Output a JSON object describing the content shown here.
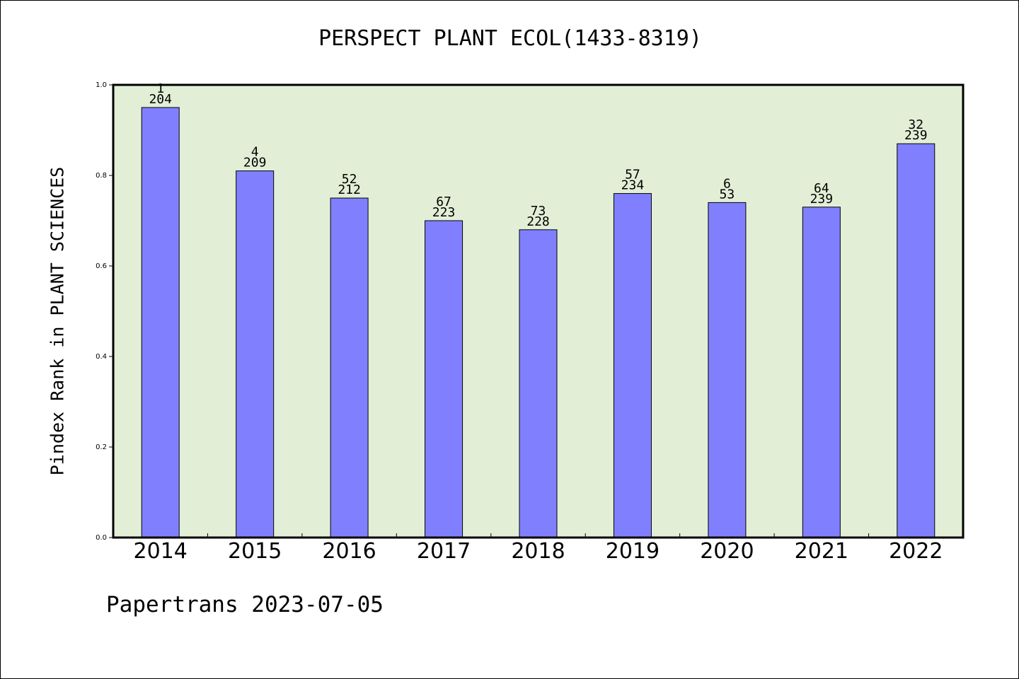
{
  "page": {
    "title": "PERSPECT PLANT ECOL(1433-8319)",
    "footer": "Papertrans 2023-07-05"
  },
  "chart_data": {
    "type": "bar",
    "title": "PERSPECT PLANT ECOL(1433-8319)",
    "xlabel": "",
    "ylabel": "Pindex Rank in PLANT SCIENCES",
    "categories": [
      "2014",
      "2015",
      "2016",
      "2017",
      "2018",
      "2019",
      "2020",
      "2021",
      "2022"
    ],
    "values": [
      0.95,
      0.81,
      0.75,
      0.7,
      0.68,
      0.76,
      0.74,
      0.73,
      0.87
    ],
    "rank": [
      "1",
      "4",
      "52",
      "67",
      "73",
      "57",
      "6",
      "64",
      "32"
    ],
    "total": [
      "204",
      "209",
      "212",
      "223",
      "228",
      "234",
      "53",
      "239",
      "239"
    ],
    "ylim": [
      0,
      1.0
    ],
    "yticks": [
      "0.0",
      "0.2",
      "0.4",
      "0.6",
      "0.8",
      "1.0"
    ],
    "grid": false,
    "colors": {
      "plot_background": "#e2efd6",
      "bar_fill": "#8080ff",
      "bar_stroke": "#000000"
    }
  }
}
